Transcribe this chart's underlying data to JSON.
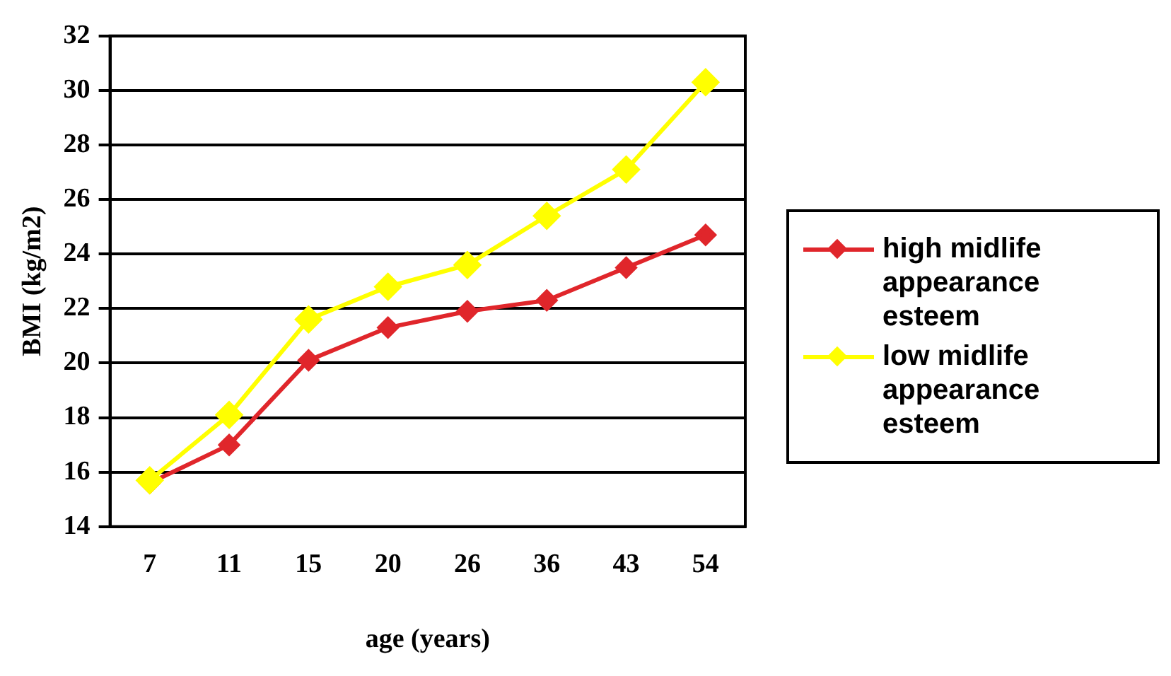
{
  "chart_data": {
    "type": "line",
    "xlabel": "age (years)",
    "ylabel": "BMI (kg/m2)",
    "categories": [
      "7",
      "11",
      "15",
      "20",
      "26",
      "36",
      "43",
      "54"
    ],
    "series": [
      {
        "name": "high midlife appearance esteem",
        "color": "#e0262b",
        "values": [
          15.6,
          17.0,
          20.1,
          21.3,
          21.9,
          22.3,
          23.5,
          24.7
        ]
      },
      {
        "name": "low midlife appearance esteem",
        "color": "#ffff00",
        "values": [
          15.7,
          18.1,
          21.6,
          22.8,
          23.6,
          25.4,
          27.1,
          30.3
        ]
      }
    ],
    "ylim": [
      14,
      32
    ],
    "yticks": [
      14,
      16,
      18,
      20,
      22,
      24,
      26,
      28,
      30,
      32
    ],
    "grid": "y",
    "legend": "right",
    "marker": "diamond",
    "line_style": "solid"
  }
}
